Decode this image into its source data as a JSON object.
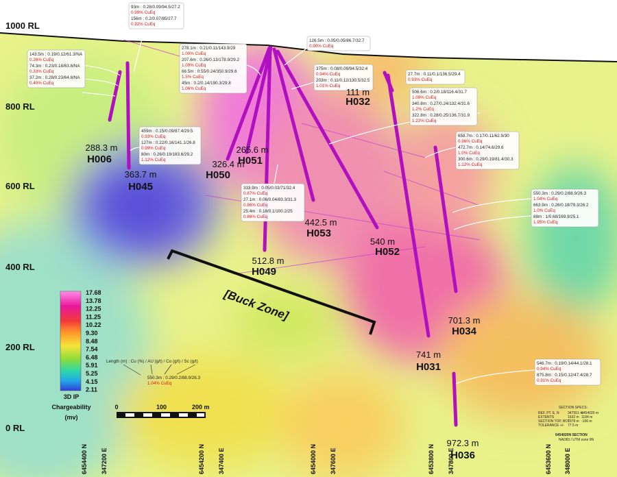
{
  "rl_labels": [
    "1000 RL",
    "800 RL",
    "600 RL",
    "400 RL",
    "200 RL",
    "0 RL"
  ],
  "callouts": [
    {
      "intercepts": [
        {
          "text": "93m : 0.28/0.09/94.5/27.2",
          "cueq": "0.99% CuEq"
        },
        {
          "text": "156m : 0.2/0.07/85/27.7",
          "cueq": "0.92% CuEq"
        }
      ]
    },
    {
      "intercepts": [
        {
          "text": "143.5m : 0.19/0.12/61.3/NA",
          "cueq": "0.26% CuEq"
        },
        {
          "text": "74.3m : 0.23/0.18/63.8/NA",
          "cueq": "0.33% CuEq"
        },
        {
          "text": "37.2m : 0.28/0.23/64.8/NA",
          "cueq": "0.40% CuEq"
        }
      ]
    },
    {
      "intercepts": [
        {
          "text": "278.1m : 0.21/0.11/143.9/29",
          "cueq": "1.00% CuEq"
        },
        {
          "text": "207.6m : 0.26/0.13/178.9/29.2",
          "cueq": "1.09% CuEq"
        },
        {
          "text": "66.5m : 0.55/0.24/350.9/29.6",
          "cueq": "1.5% CuEq"
        },
        {
          "text": "45m : 0.2/0.14/190.3/29.8",
          "cueq": "1.06% CuEq"
        }
      ]
    },
    {
      "intercepts": [
        {
          "text": "126.5m : 0.05/0.05/86.7/32.7",
          "cueq": "0.90% CuEq"
        }
      ]
    },
    {
      "intercepts": [
        {
          "text": "375m : 0.08/0.09/94.5/32.4",
          "cueq": "0.94% CuEq"
        },
        {
          "text": "203m : 0.11/0.12/130.5/32.5",
          "cueq": "1.01% CuEq"
        }
      ]
    },
    {
      "intercepts": [
        {
          "text": "27.7m : 0.11/0.1/136.5/29.4",
          "cueq": "0.93% CuEq"
        }
      ]
    },
    {
      "intercepts": [
        {
          "text": "506.6m : 0.2/0.18/116.4/31.7",
          "cueq": "1.09% CuEq"
        },
        {
          "text": "340.8m : 0.27/0.24/132.4/31.6",
          "cueq": "1.2% CuEq"
        },
        {
          "text": "322.8m : 0.28/0.25/136.7/31.9",
          "cueq": "1.22% CuEq"
        }
      ]
    },
    {
      "intercepts": [
        {
          "text": "459m : 0.15/0.09/87.4/29.5",
          "cueq": "0.93% CuEq"
        },
        {
          "text": "127m : 0.22/0.16/141.1/26.8",
          "cueq": "0.99% CuEq"
        },
        {
          "text": "80m : 0.26/0.19/183.6/29.2",
          "cueq": "1.12% CuEq"
        }
      ]
    },
    {
      "intercepts": [
        {
          "text": "658.7m : 0.17/0.11/62.9/30",
          "cueq": "0.96% CuEq"
        },
        {
          "text": "472.7m : 0.14/74.6/29.6",
          "cueq": "1.0% CuEq"
        },
        {
          "text": "300.6m : 0.29/0.19/81.4/30.3",
          "cueq": "1.12% CuEq"
        }
      ]
    },
    {
      "intercepts": [
        {
          "text": "333.9m : 0.05/0.03/71/32.4",
          "cueq": "0.87% CuEq"
        },
        {
          "text": "27.1m : 0.06/0.04/83.3/31.3",
          "cueq": "0.86% CuEq"
        },
        {
          "text": "25.4m : 0.18/0.1/100.2/25",
          "cueq": "0.86% CuEq"
        }
      ]
    },
    {
      "intercepts": [
        {
          "text": "550.3m : 0.29/0.2/88.9/26.3",
          "cueq": "1.04% CuEq"
        },
        {
          "text": "663.9m : 0.26/0.18/79.3/26.2",
          "cueq": "1.0% CuEq"
        },
        {
          "text": "88m : 1/0.68/169.9/25.1",
          "cueq": "1.95% CuEq"
        }
      ]
    },
    {
      "intercepts": [
        {
          "text": "546.7m : 0.19/0.14/44.1/28.1",
          "cueq": "0.94% CuEq"
        },
        {
          "text": "875.8m : 0.15/0.12/47.4/28.7",
          "cueq": "0.91% CuEq"
        }
      ]
    }
  ],
  "holes": [
    {
      "name": "H045",
      "depth": "363.7 m"
    },
    {
      "name": "H006",
      "depth": "288.3 m"
    },
    {
      "name": "H051",
      "depth": "265.6 m"
    },
    {
      "name": "H050",
      "depth": "326.4 m"
    },
    {
      "name": "H049",
      "depth": "512.8 m"
    },
    {
      "name": "H053",
      "depth": "442.5 m"
    },
    {
      "name": "H052",
      "depth": "540 m"
    },
    {
      "name": "H032",
      "depth": "111 m"
    },
    {
      "name": "H031",
      "depth": "741 m"
    },
    {
      "name": "H034",
      "depth": "701.3 m"
    },
    {
      "name": "H036",
      "depth": "972.3 m"
    }
  ],
  "zone_label": "[Buck Zone]",
  "legend": {
    "values": [
      "17.68",
      "13.78",
      "12.25",
      "11.25",
      "10.22",
      "9.30",
      "8.48",
      "7.54",
      "6.48",
      "5.91",
      "5.25",
      "4.15",
      "2.11"
    ],
    "title": [
      "3D IP",
      "Chargeability",
      "(mv)"
    ]
  },
  "key": {
    "header": "Length (m) : Cu (%) / AU (g/t) / Co (g/t) / Sc (g/t)",
    "example": "550.3m : 0.29/0.2/88.9/26.3",
    "example_cueq": "1.04% CuEq"
  },
  "scale_bar": [
    "0",
    "100",
    "200 m"
  ],
  "coordinates": [
    "6454400 N",
    "347200 E",
    "6454200 N",
    "347400 E",
    "6454000 N",
    "347600 E",
    "6453800 N",
    "347800 E",
    "6453600 N",
    "348000 E"
  ],
  "section_specs": {
    "title": "SECTION SPECS:",
    "rows": [
      [
        "REF. PT. E, N",
        "347551 m",
        "6454020 m"
      ],
      [
        "EXTENTS",
        "1532 m",
        "1184 m"
      ],
      [
        "SECTION TOP, BOT",
        "1078 m",
        "-106 m"
      ],
      [
        "TOLERANCE +/-",
        "77.5 m"
      ]
    ],
    "section": "6454020N SECTION",
    "projection": "NAD83 / UTM zone 9N"
  }
}
